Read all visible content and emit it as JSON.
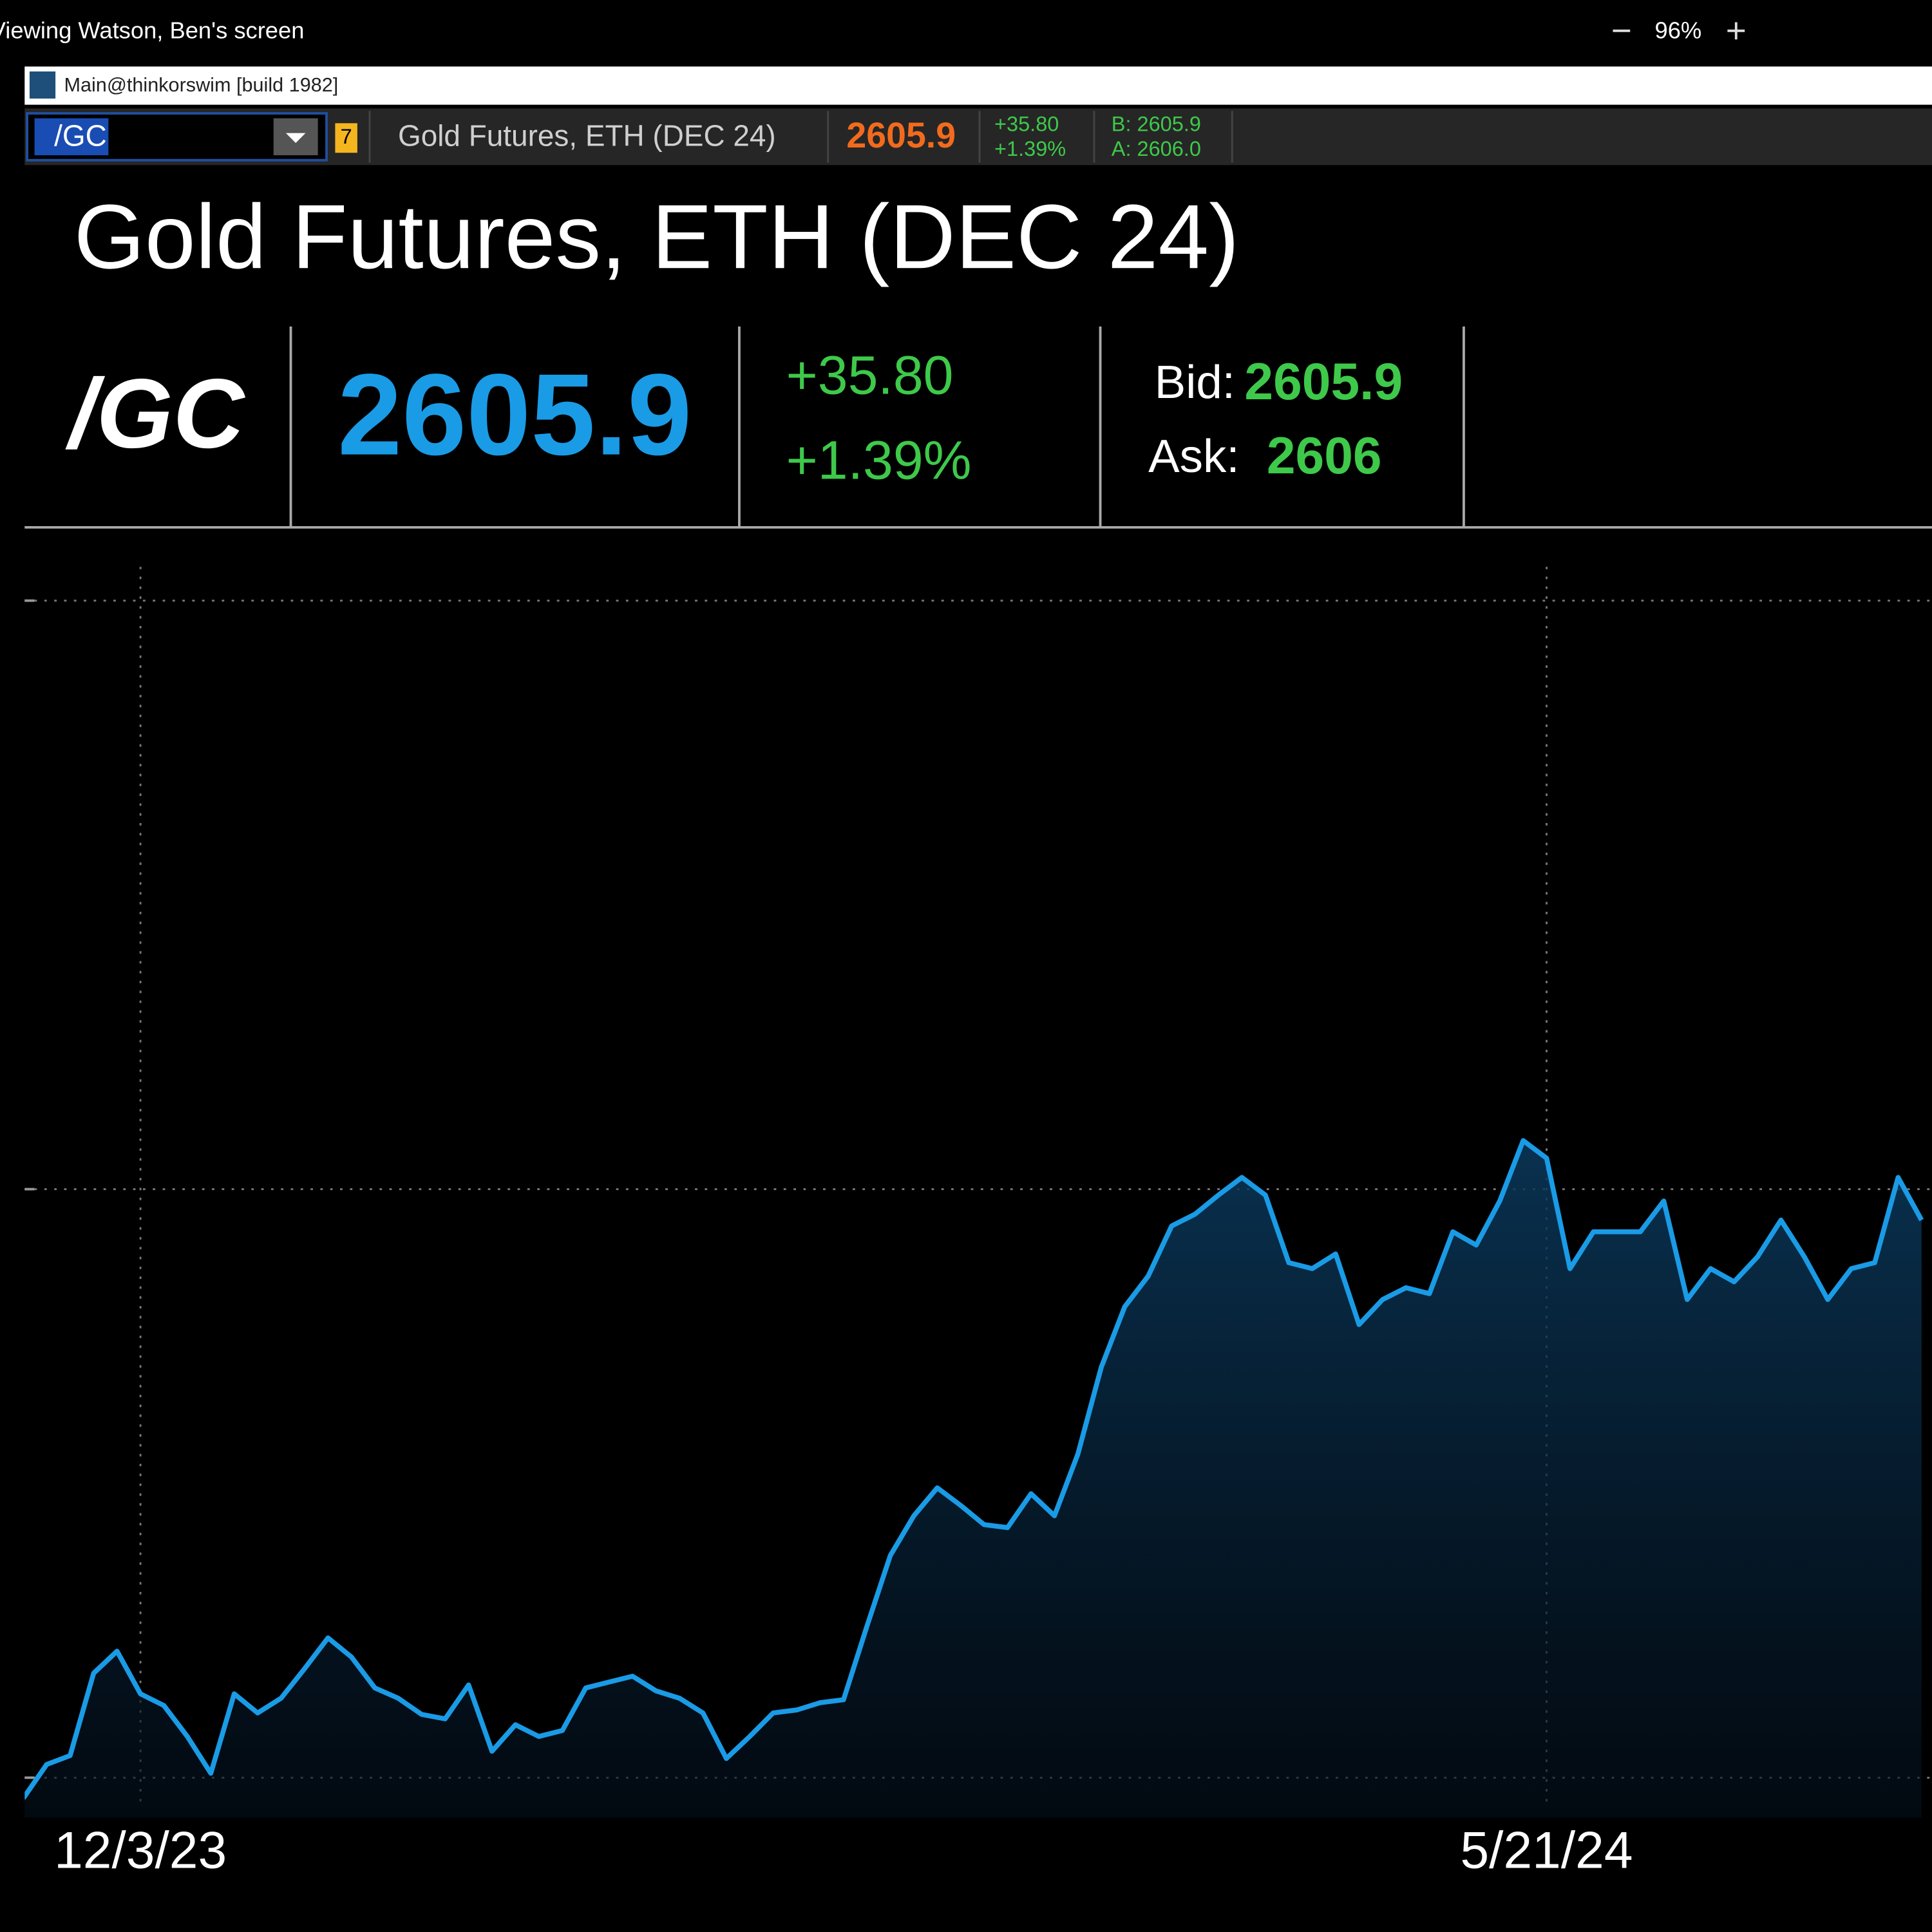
{
  "window": {
    "viewing": "Viewing Watson, Ben's screen",
    "zoom": "96%",
    "app_title": "Main@thinkorswim [build 1982]"
  },
  "toolbar": {
    "symbol": "/GC",
    "badge": "7",
    "description": "Gold Futures, ETH (DEC 24)",
    "last": "2605.9",
    "change": "+35.80",
    "change_pct": "+1.39%",
    "bid": "B: 2605.9",
    "ask": "A: 2606.0"
  },
  "quote": {
    "title": "Gold Futures, ETH (DEC 24)",
    "symbol": "/GC",
    "last": "2605.9",
    "change": "+35.80",
    "change_pct": "+1.39%",
    "bid_label": "Bid:",
    "bid": "2605.9",
    "ask_label": "Ask:",
    "ask": "2606"
  },
  "chart_data": {
    "type": "area",
    "color": "#1a9be6",
    "grid": true,
    "categories": [
      null,
      null,
      null,
      null,
      null,
      "12/3/23",
      null,
      null,
      null,
      null,
      null,
      null,
      null,
      null,
      null,
      null,
      null,
      null,
      null,
      null,
      null,
      null,
      null,
      null,
      null,
      null,
      null,
      null,
      null,
      null,
      null,
      null,
      null,
      null,
      null,
      null,
      null,
      null,
      null,
      null,
      null,
      null,
      null,
      null,
      null,
      null,
      null,
      null,
      null,
      null,
      null,
      null,
      null,
      null,
      null,
      null,
      null,
      null,
      null,
      null,
      null,
      null,
      null,
      null,
      null,
      "5/21/24",
      null,
      null,
      null,
      null,
      null,
      null,
      null,
      null,
      null,
      null,
      null,
      null,
      null,
      null,
      null,
      null
    ],
    "values": [
      2086,
      2109,
      2115,
      2171,
      2186,
      2157,
      2149,
      2128,
      2103,
      2157,
      2144,
      2154,
      2174,
      2195,
      2182,
      2161,
      2154,
      2143,
      2140,
      2163,
      2118,
      2136,
      2128,
      2132,
      2161,
      2165,
      2169,
      2159,
      2154,
      2144,
      2113,
      2128,
      2144,
      2146,
      2151,
      2153,
      2203,
      2251,
      2278,
      2297,
      2285,
      2272,
      2270,
      2293,
      2278,
      2320,
      2379,
      2420,
      2441,
      2475,
      2483,
      2496,
      2508,
      2496,
      2450,
      2446,
      2456,
      2408,
      2425,
      2433,
      2429,
      2471,
      2462,
      2492,
      2533,
      2521,
      2446,
      2471,
      2471,
      2471,
      2492,
      2425,
      2446,
      2437,
      2454,
      2479,
      2454,
      2425,
      2446,
      2450,
      2508,
      2479
    ],
    "ylim": [
      2073,
      2923
    ],
    "gridlines": [
      2100,
      2500,
      2900
    ]
  }
}
